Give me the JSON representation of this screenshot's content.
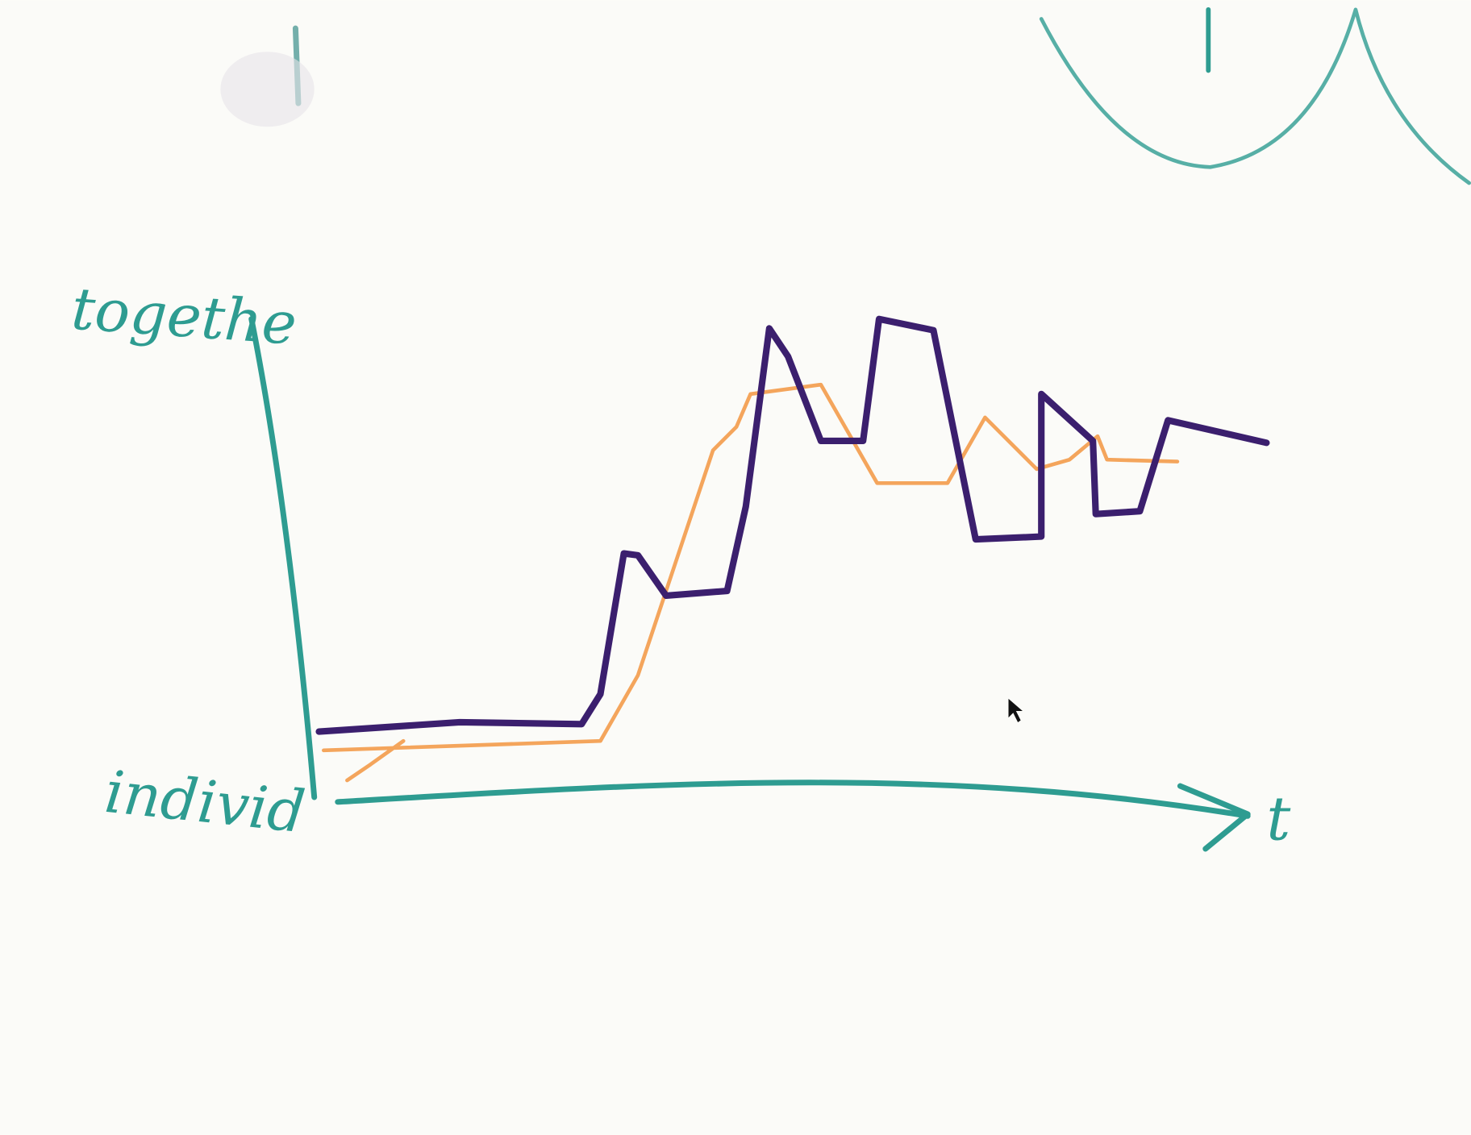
{
  "labels": {
    "y_top": "togethe",
    "y_bottom": "individ",
    "x_axis": "t"
  }
}
